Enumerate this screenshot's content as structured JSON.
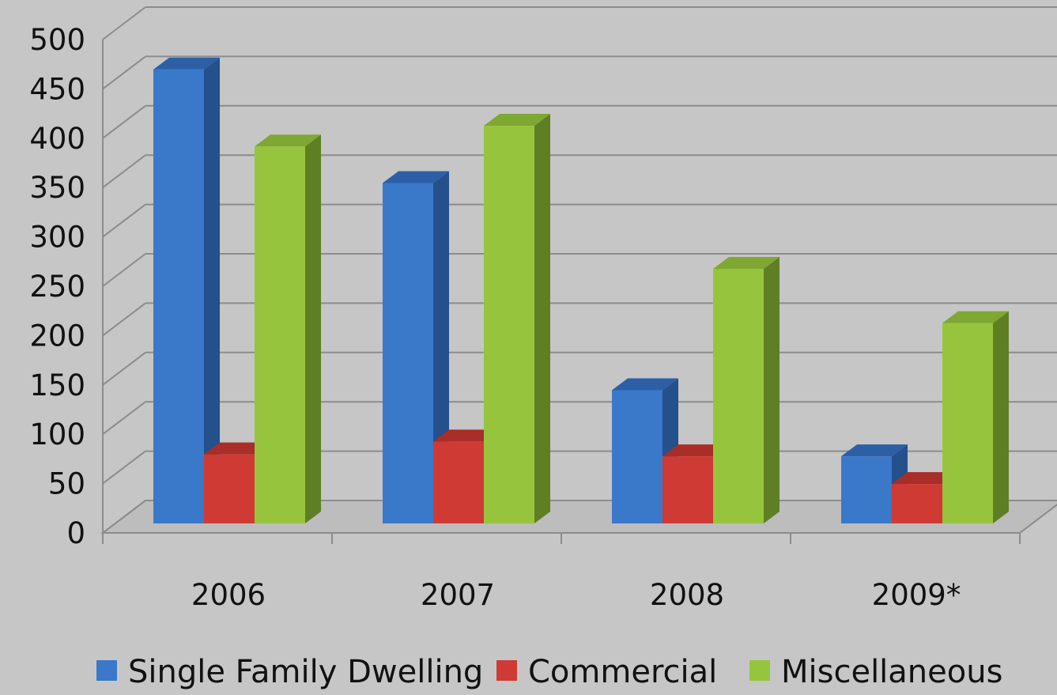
{
  "chart_data": {
    "type": "bar",
    "style": "3d-clustered-column",
    "categories": [
      "2006",
      "2007",
      "2008",
      "2009*"
    ],
    "series": [
      {
        "name": "Single Family Dwelling",
        "color": "#3a78c9",
        "side_color": "#24508c",
        "top_color": "#2d5fa6",
        "values": [
          460,
          345,
          135,
          68
        ]
      },
      {
        "name": "Commercial",
        "color": "#cf3a35",
        "side_color": "#8e2421",
        "top_color": "#a92d29",
        "values": [
          70,
          83,
          68,
          40
        ]
      },
      {
        "name": "Miscellaneous",
        "color": "#97c43d",
        "side_color": "#5e7f24",
        "top_color": "#7ea832",
        "values": [
          382,
          403,
          258,
          203
        ]
      }
    ],
    "yticks": [
      "0",
      "50",
      "100",
      "150",
      "200",
      "250",
      "300",
      "350",
      "400",
      "450",
      "500"
    ],
    "ylim": [
      0,
      500
    ],
    "grid": true,
    "legend_position": "bottom",
    "title": "",
    "xlabel": "",
    "ylabel": ""
  }
}
